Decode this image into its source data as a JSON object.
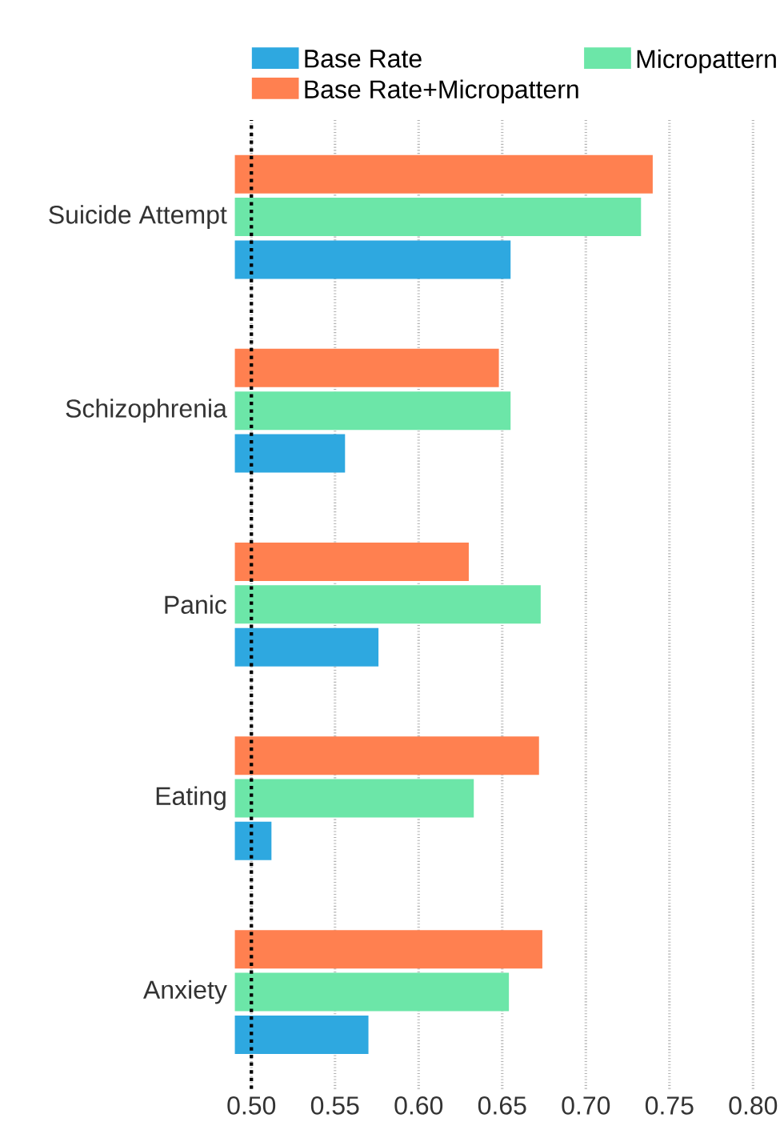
{
  "chart_data": {
    "type": "bar",
    "orientation": "horizontal",
    "categories": [
      "Suicide Attempt",
      "Schizophrenia",
      "Panic",
      "Eating",
      "Anxiety"
    ],
    "series": [
      {
        "name": "Base Rate",
        "color": "#2ea8e0",
        "values": [
          0.655,
          0.556,
          0.576,
          0.512,
          0.57
        ]
      },
      {
        "name": "Micropattern",
        "color": "#6ce6a8",
        "values": [
          0.733,
          0.655,
          0.673,
          0.633,
          0.654
        ]
      },
      {
        "name": "Base Rate+Micropattern",
        "color": "#ff8050",
        "values": [
          0.74,
          0.648,
          0.63,
          0.672,
          0.674
        ]
      }
    ],
    "xlim": [
      0.49,
      0.8
    ],
    "xticks": [
      {
        "value": 0.5,
        "label": "0.50"
      },
      {
        "value": 0.55,
        "label": "0.55"
      },
      {
        "value": 0.6,
        "label": "0.60"
      },
      {
        "value": 0.65,
        "label": "0.65"
      },
      {
        "value": 0.7,
        "label": "0.70"
      },
      {
        "value": 0.75,
        "label": "0.75"
      },
      {
        "value": 0.8,
        "label": "0.80"
      }
    ],
    "grid": "x",
    "legend": "top",
    "ref_lines": [
      {
        "axis": "x",
        "value": 0.5,
        "color": "#000000",
        "line_style": "dotted"
      }
    ]
  }
}
